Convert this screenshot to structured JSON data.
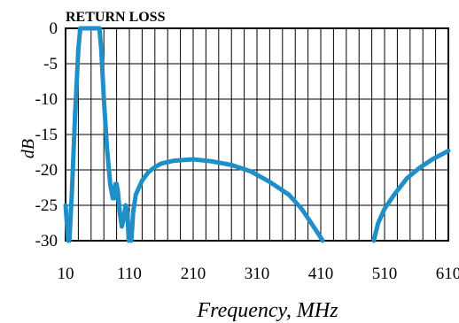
{
  "chart_data": {
    "type": "line",
    "title": "RETURN LOSS",
    "xlabel": "Frequency, MHz",
    "ylabel": "dB",
    "xlim": [
      10,
      610
    ],
    "ylim": [
      -30,
      0
    ],
    "x_ticks": [
      "10",
      "110",
      "210",
      "310",
      "410",
      "510",
      "610"
    ],
    "y_ticks": [
      "0",
      "-5",
      "-10",
      "-15",
      "-20",
      "-25",
      "-30"
    ],
    "grid": true,
    "line_color": "#1f8fc8",
    "series": [
      {
        "segments": [
          [
            [
              10,
              -25
            ],
            [
              14,
              -30
            ]
          ],
          [
            [
              16,
              -30
            ],
            [
              20,
              -23
            ],
            [
              25,
              -12
            ],
            [
              30,
              -3
            ],
            [
              33,
              0
            ],
            [
              36,
              0
            ],
            [
              60,
              0
            ],
            [
              63,
              0
            ],
            [
              66,
              -3
            ],
            [
              70,
              -10
            ],
            [
              75,
              -17
            ],
            [
              80,
              -22
            ],
            [
              84,
              -24
            ],
            [
              86,
              -24
            ],
            [
              88,
              -22
            ],
            [
              90,
              -22
            ],
            [
              92,
              -23
            ],
            [
              95,
              -26
            ],
            [
              98,
              -28
            ],
            [
              101,
              -27
            ],
            [
              104,
              -25
            ],
            [
              107,
              -26
            ],
            [
              109,
              -30
            ]
          ],
          [
            [
              113,
              -30
            ],
            [
              116,
              -26
            ],
            [
              120,
              -23.5
            ],
            [
              130,
              -21.5
            ],
            [
              140,
              -20.3
            ],
            [
              150,
              -19.6
            ],
            [
              160,
              -19.1
            ],
            [
              180,
              -18.7
            ],
            [
              210,
              -18.5
            ],
            [
              240,
              -18.8
            ],
            [
              270,
              -19.3
            ],
            [
              300,
              -20.2
            ],
            [
              330,
              -21.7
            ],
            [
              360,
              -23.5
            ],
            [
              380,
              -25.5
            ],
            [
              395,
              -27.5
            ],
            [
              408,
              -29.3
            ],
            [
              413,
              -30
            ]
          ],
          [
            [
              493,
              -30
            ],
            [
              500,
              -27.5
            ],
            [
              510,
              -25.5
            ],
            [
              525,
              -23.5
            ],
            [
              545,
              -21.2
            ],
            [
              565,
              -19.7
            ],
            [
              585,
              -18.5
            ],
            [
              610,
              -17.3
            ]
          ]
        ]
      }
    ]
  }
}
